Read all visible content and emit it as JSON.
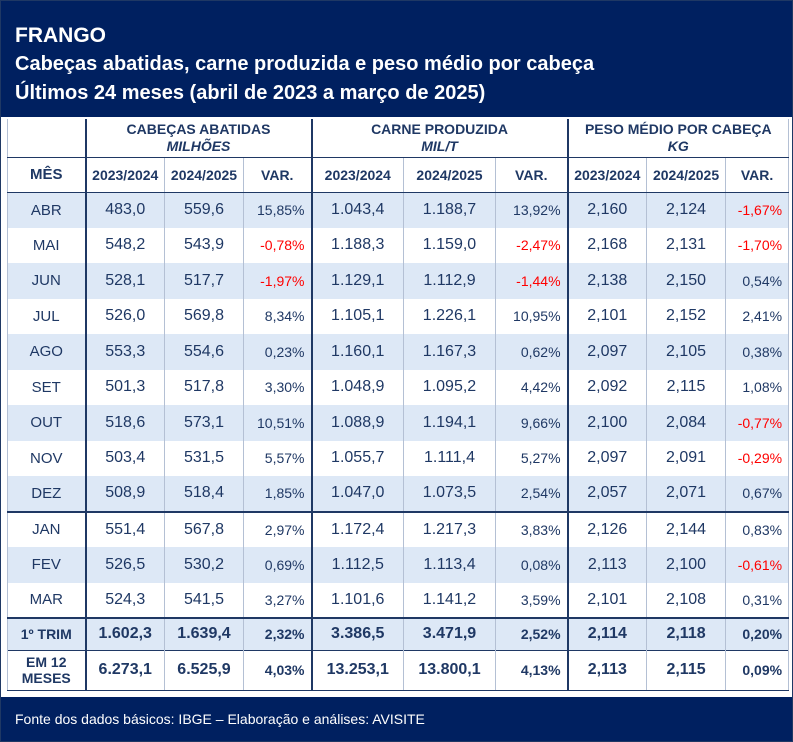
{
  "header": {
    "line1": "FRANGO",
    "line2": "Cabeças abatidas, carne produzida e peso médio por cabeça",
    "line3": "Últimos 24 meses (abril de 2023 a março de 2025)"
  },
  "groups": [
    {
      "name": "CABEÇAS ABATIDAS",
      "unit": "MILHÕES"
    },
    {
      "name": "CARNE PRODUZIDA",
      "unit": "MIL/T"
    },
    {
      "name": "PESO MÉDIO POR CABEÇA",
      "unit": "KG"
    }
  ],
  "columns": {
    "mes": "MÊS",
    "sub": [
      "2023/2024",
      "2024/2025",
      "VAR.",
      "2023/2024",
      "2024/2025",
      "VAR.",
      "2023/2024",
      "2024/2025",
      "VAR."
    ]
  },
  "rows": [
    {
      "m": "ABR",
      "v": [
        "483,0",
        "559,6",
        "15,85%",
        "1.043,4",
        "1.188,7",
        "13,92%",
        "2,160",
        "2,124",
        "-1,67%"
      ]
    },
    {
      "m": "MAI",
      "v": [
        "548,2",
        "543,9",
        "-0,78%",
        "1.188,3",
        "1.159,0",
        "-2,47%",
        "2,168",
        "2,131",
        "-1,70%"
      ]
    },
    {
      "m": "JUN",
      "v": [
        "528,1",
        "517,7",
        "-1,97%",
        "1.129,1",
        "1.112,9",
        "-1,44%",
        "2,138",
        "2,150",
        "0,54%"
      ]
    },
    {
      "m": "JUL",
      "v": [
        "526,0",
        "569,8",
        "8,34%",
        "1.105,1",
        "1.226,1",
        "10,95%",
        "2,101",
        "2,152",
        "2,41%"
      ]
    },
    {
      "m": "AGO",
      "v": [
        "553,3",
        "554,6",
        "0,23%",
        "1.160,1",
        "1.167,3",
        "0,62%",
        "2,097",
        "2,105",
        "0,38%"
      ]
    },
    {
      "m": "SET",
      "v": [
        "501,3",
        "517,8",
        "3,30%",
        "1.048,9",
        "1.095,2",
        "4,42%",
        "2,092",
        "2,115",
        "1,08%"
      ]
    },
    {
      "m": "OUT",
      "v": [
        "518,6",
        "573,1",
        "10,51%",
        "1.088,9",
        "1.194,1",
        "9,66%",
        "2,100",
        "2,084",
        "-0,77%"
      ]
    },
    {
      "m": "NOV",
      "v": [
        "503,4",
        "531,5",
        "5,57%",
        "1.055,7",
        "1.111,4",
        "5,27%",
        "2,097",
        "2,091",
        "-0,29%"
      ]
    },
    {
      "m": "DEZ",
      "v": [
        "508,9",
        "518,4",
        "1,85%",
        "1.047,0",
        "1.073,5",
        "2,54%",
        "2,057",
        "2,071",
        "0,67%"
      ]
    },
    {
      "m": "JAN",
      "v": [
        "551,4",
        "567,8",
        "2,97%",
        "1.172,4",
        "1.217,3",
        "3,83%",
        "2,126",
        "2,144",
        "0,83%"
      ]
    },
    {
      "m": "FEV",
      "v": [
        "526,5",
        "530,2",
        "0,69%",
        "1.112,5",
        "1.113,4",
        "0,08%",
        "2,113",
        "2,100",
        "-0,61%"
      ]
    },
    {
      "m": "MAR",
      "v": [
        "524,3",
        "541,5",
        "3,27%",
        "1.101,6",
        "1.141,2",
        "3,59%",
        "2,101",
        "2,108",
        "0,31%"
      ]
    }
  ],
  "totals": [
    {
      "m": "1º TRIM",
      "v": [
        "1.602,3",
        "1.639,4",
        "2,32%",
        "3.386,5",
        "3.471,9",
        "2,52%",
        "2,114",
        "2,118",
        "0,20%"
      ]
    },
    {
      "m": "EM 12 MESES",
      "v": [
        "6.273,1",
        "6.525,9",
        "4,03%",
        "13.253,1",
        "13.800,1",
        "4,13%",
        "2,113",
        "2,115",
        "0,09%"
      ]
    }
  ],
  "colors": {
    "header_bg": "#002060",
    "row_tint": "#dde8f6",
    "text": "#1f3864",
    "negative": "#ff0000"
  },
  "footer": "Fonte dos dados básicos: IBGE – Elaboração e análises: AVISITE"
}
